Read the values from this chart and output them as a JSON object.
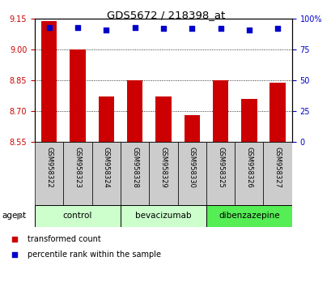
{
  "title": "GDS5672 / 218398_at",
  "samples": [
    "GSM958322",
    "GSM958323",
    "GSM958324",
    "GSM958328",
    "GSM958329",
    "GSM958330",
    "GSM958325",
    "GSM958326",
    "GSM958327"
  ],
  "bar_values": [
    9.14,
    9.0,
    8.77,
    8.85,
    8.77,
    8.68,
    8.85,
    8.76,
    8.84
  ],
  "percentile_values": [
    93,
    93,
    91,
    93,
    92,
    92,
    92,
    91,
    92
  ],
  "ylim_left": [
    8.55,
    9.15
  ],
  "ylim_right": [
    0,
    100
  ],
  "yticks_left": [
    8.55,
    8.7,
    8.85,
    9.0,
    9.15
  ],
  "yticks_right": [
    0,
    25,
    50,
    75,
    100
  ],
  "groups": [
    {
      "label": "control",
      "indices": [
        0,
        1,
        2
      ],
      "color": "#ccffcc"
    },
    {
      "label": "bevacizumab",
      "indices": [
        3,
        4,
        5
      ],
      "color": "#ccffcc"
    },
    {
      "label": "dibenzazepine",
      "indices": [
        6,
        7,
        8
      ],
      "color": "#55ee55"
    }
  ],
  "bar_color": "#cc0000",
  "dot_color": "#0000cc",
  "bar_width": 0.55,
  "tick_label_color_left": "#cc0000",
  "tick_label_color_right": "#0000cc",
  "legend_items": [
    {
      "label": "transformed count",
      "color": "#cc0000"
    },
    {
      "label": "percentile rank within the sample",
      "color": "#0000cc"
    }
  ],
  "xlabel_agent": "agent",
  "background_color": "#ffffff",
  "sample_box_color": "#cccccc",
  "title_fontsize": 9.5,
  "tick_fontsize": 7,
  "sample_fontsize": 6,
  "group_fontsize": 7.5,
  "legend_fontsize": 7
}
